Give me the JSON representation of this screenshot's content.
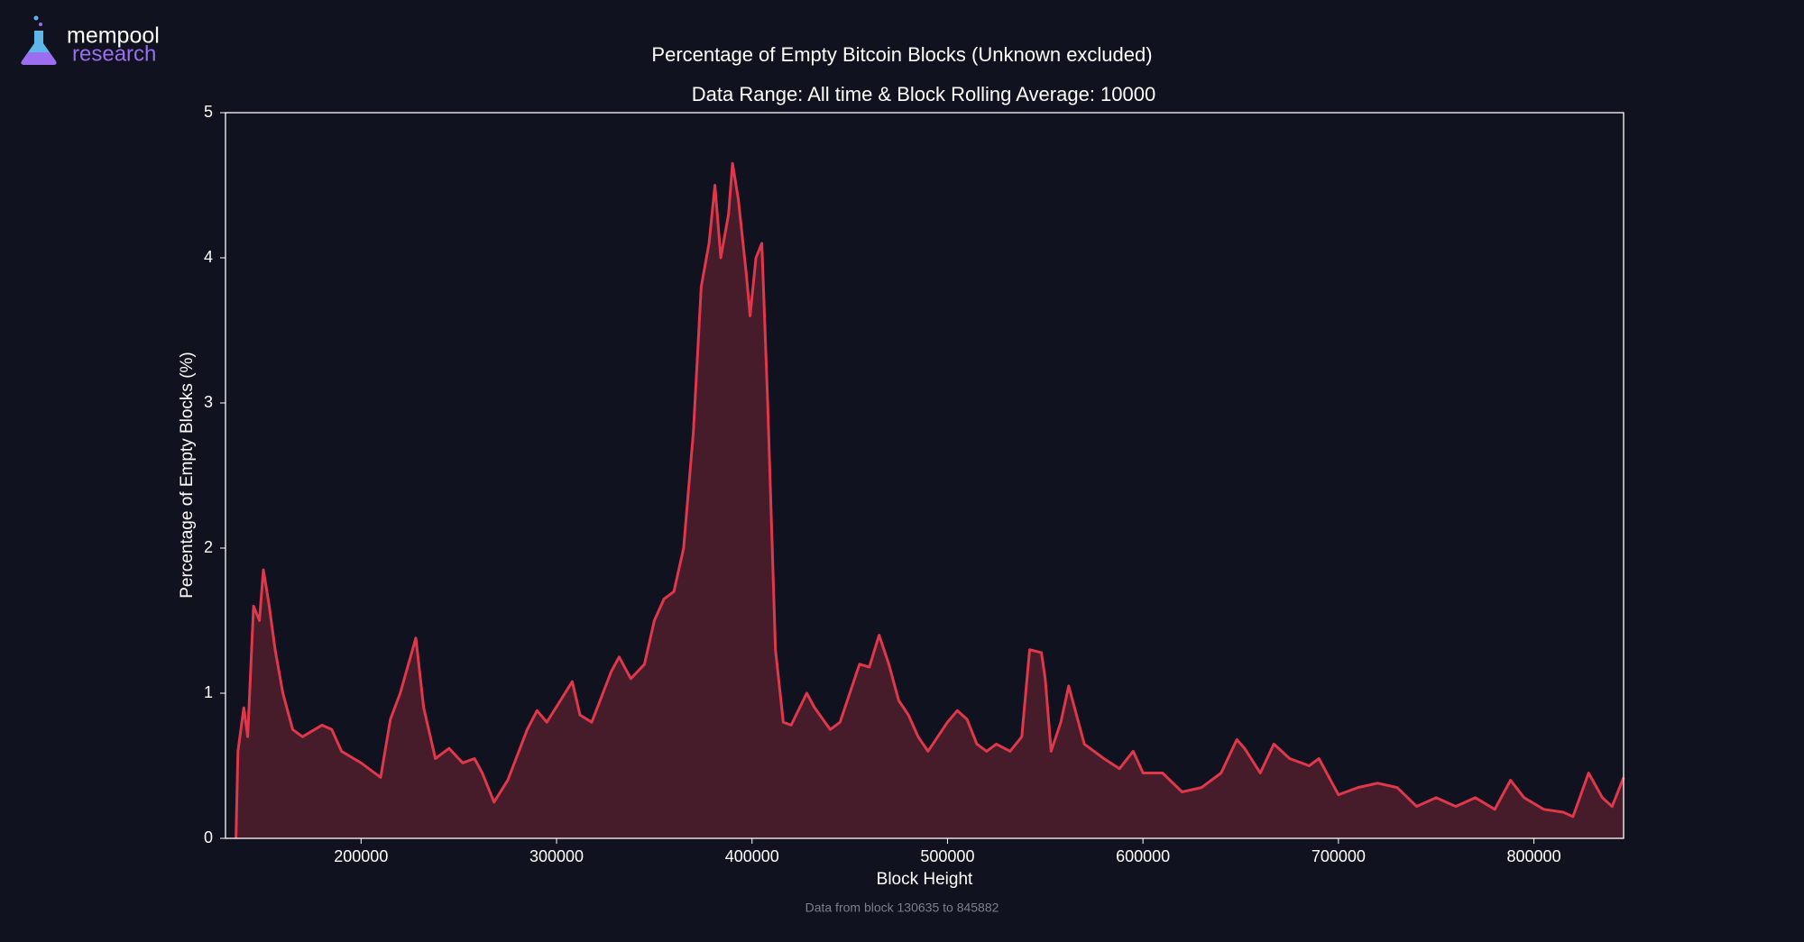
{
  "logo": {
    "line1": "mempool",
    "line2": "research"
  },
  "chart_data": {
    "type": "area",
    "title": "Percentage of Empty Bitcoin Blocks (Unknown excluded)",
    "subtitle": "Data Range: All time & Block Rolling Average: 10000",
    "xlabel": "Block Height",
    "ylabel": "Percentage of Empty Blocks (%)",
    "footnote": "Data from block 130635 to 845882",
    "xlim": [
      130635,
      845882
    ],
    "ylim": [
      0,
      5
    ],
    "xticks": [
      200000,
      300000,
      400000,
      500000,
      600000,
      700000,
      800000
    ],
    "yticks": [
      0,
      1,
      2,
      3,
      4,
      5
    ],
    "color": "#e0374a",
    "fill_color": "#4a1d2b",
    "x": [
      136000,
      137000,
      140000,
      142000,
      145000,
      148000,
      150000,
      153000,
      156000,
      160000,
      165000,
      170000,
      180000,
      185000,
      190000,
      200000,
      210000,
      215000,
      220000,
      228000,
      232000,
      238000,
      245000,
      252000,
      258000,
      262000,
      268000,
      275000,
      285000,
      290000,
      295000,
      302000,
      308000,
      312000,
      318000,
      328000,
      332000,
      338000,
      345000,
      350000,
      355000,
      360000,
      365000,
      370000,
      374000,
      378000,
      381000,
      384000,
      388000,
      390000,
      393000,
      397000,
      399000,
      402000,
      405000,
      408000,
      412000,
      416000,
      420000,
      428000,
      432000,
      440000,
      445000,
      450000,
      455000,
      460000,
      465000,
      470000,
      475000,
      480000,
      485000,
      490000,
      500000,
      505000,
      510000,
      515000,
      520000,
      525000,
      532000,
      538000,
      542000,
      548000,
      550000,
      553000,
      558000,
      562000,
      565000,
      570000,
      580000,
      588000,
      595000,
      600000,
      610000,
      620000,
      630000,
      640000,
      648000,
      652000,
      660000,
      667000,
      675000,
      685000,
      690000,
      700000,
      710000,
      720000,
      730000,
      740000,
      750000,
      760000,
      770000,
      780000,
      788000,
      795000,
      805000,
      815000,
      820000,
      828000,
      835000,
      840000,
      845882
    ],
    "values": [
      0,
      0.6,
      0.9,
      0.7,
      1.6,
      1.5,
      1.85,
      1.6,
      1.3,
      1.0,
      0.75,
      0.7,
      0.78,
      0.75,
      0.6,
      0.52,
      0.42,
      0.82,
      1.0,
      1.38,
      0.9,
      0.55,
      0.62,
      0.52,
      0.55,
      0.45,
      0.25,
      0.4,
      0.75,
      0.88,
      0.8,
      0.95,
      1.08,
      0.85,
      0.8,
      1.15,
      1.25,
      1.1,
      1.2,
      1.5,
      1.65,
      1.7,
      2.0,
      2.8,
      3.8,
      4.1,
      4.5,
      4.0,
      4.3,
      4.65,
      4.4,
      3.9,
      3.6,
      4.0,
      4.1,
      3.0,
      1.3,
      0.8,
      0.78,
      1.0,
      0.9,
      0.75,
      0.8,
      1.0,
      1.2,
      1.18,
      1.4,
      1.2,
      0.95,
      0.85,
      0.7,
      0.6,
      0.8,
      0.88,
      0.82,
      0.65,
      0.6,
      0.65,
      0.6,
      0.7,
      1.3,
      1.28,
      1.1,
      0.6,
      0.8,
      1.05,
      0.9,
      0.65,
      0.55,
      0.48,
      0.6,
      0.45,
      0.45,
      0.32,
      0.35,
      0.45,
      0.68,
      0.62,
      0.45,
      0.65,
      0.55,
      0.5,
      0.55,
      0.3,
      0.35,
      0.38,
      0.35,
      0.22,
      0.28,
      0.22,
      0.28,
      0.2,
      0.4,
      0.28,
      0.2,
      0.18,
      0.15,
      0.45,
      0.28,
      0.22,
      0.42
    ]
  }
}
